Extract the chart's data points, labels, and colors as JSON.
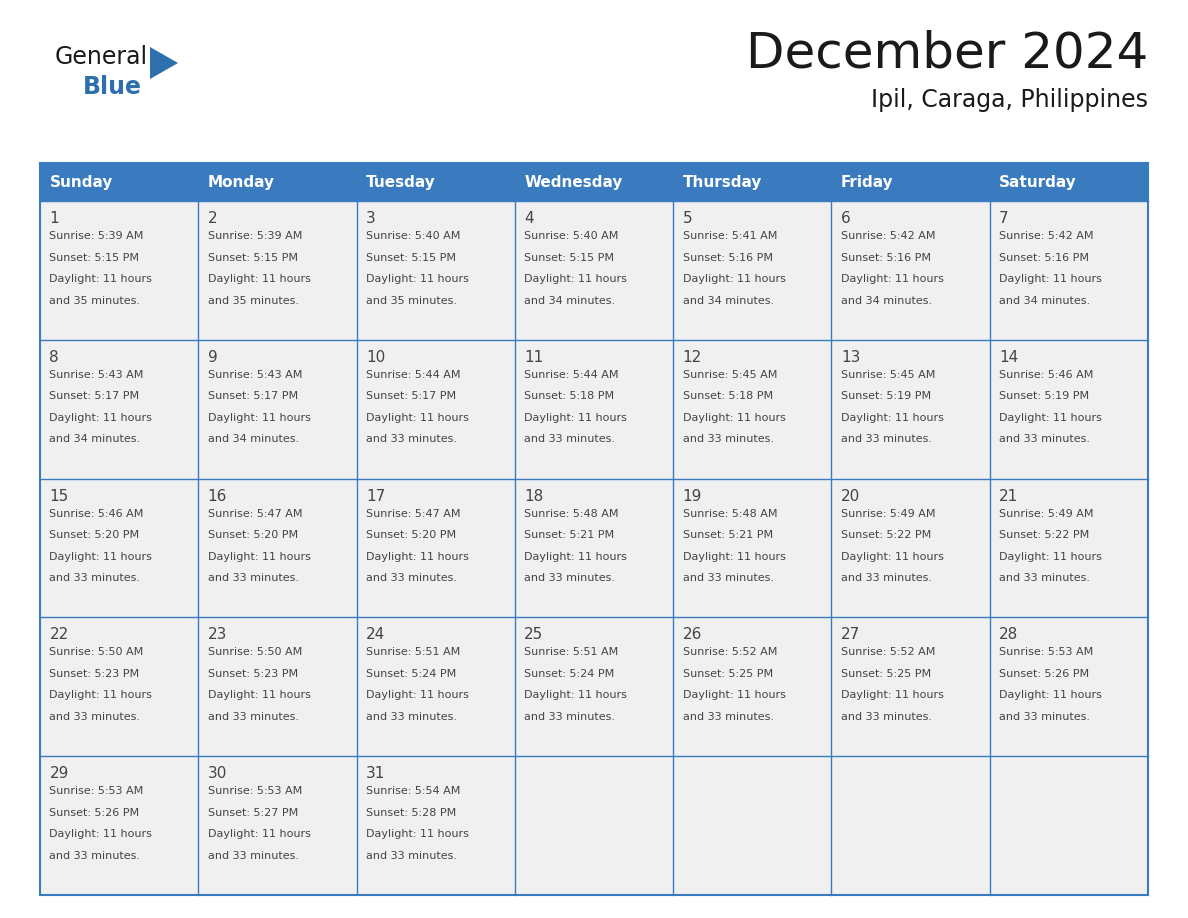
{
  "title": "December 2024",
  "subtitle": "Ipil, Caraga, Philippines",
  "header_color": "#3a7bbf",
  "header_text_color": "#ffffff",
  "cell_bg_color": "#f0f0f0",
  "border_color": "#3a7bbf",
  "day_names": [
    "Sunday",
    "Monday",
    "Tuesday",
    "Wednesday",
    "Thursday",
    "Friday",
    "Saturday"
  ],
  "days": [
    {
      "day": 1,
      "col": 0,
      "row": 0,
      "sunrise": "5:39 AM",
      "sunset": "5:15 PM",
      "daylight_suffix": "35 minutes."
    },
    {
      "day": 2,
      "col": 1,
      "row": 0,
      "sunrise": "5:39 AM",
      "sunset": "5:15 PM",
      "daylight_suffix": "35 minutes."
    },
    {
      "day": 3,
      "col": 2,
      "row": 0,
      "sunrise": "5:40 AM",
      "sunset": "5:15 PM",
      "daylight_suffix": "35 minutes."
    },
    {
      "day": 4,
      "col": 3,
      "row": 0,
      "sunrise": "5:40 AM",
      "sunset": "5:15 PM",
      "daylight_suffix": "34 minutes."
    },
    {
      "day": 5,
      "col": 4,
      "row": 0,
      "sunrise": "5:41 AM",
      "sunset": "5:16 PM",
      "daylight_suffix": "34 minutes."
    },
    {
      "day": 6,
      "col": 5,
      "row": 0,
      "sunrise": "5:42 AM",
      "sunset": "5:16 PM",
      "daylight_suffix": "34 minutes."
    },
    {
      "day": 7,
      "col": 6,
      "row": 0,
      "sunrise": "5:42 AM",
      "sunset": "5:16 PM",
      "daylight_suffix": "34 minutes."
    },
    {
      "day": 8,
      "col": 0,
      "row": 1,
      "sunrise": "5:43 AM",
      "sunset": "5:17 PM",
      "daylight_suffix": "34 minutes."
    },
    {
      "day": 9,
      "col": 1,
      "row": 1,
      "sunrise": "5:43 AM",
      "sunset": "5:17 PM",
      "daylight_suffix": "34 minutes."
    },
    {
      "day": 10,
      "col": 2,
      "row": 1,
      "sunrise": "5:44 AM",
      "sunset": "5:17 PM",
      "daylight_suffix": "33 minutes."
    },
    {
      "day": 11,
      "col": 3,
      "row": 1,
      "sunrise": "5:44 AM",
      "sunset": "5:18 PM",
      "daylight_suffix": "33 minutes."
    },
    {
      "day": 12,
      "col": 4,
      "row": 1,
      "sunrise": "5:45 AM",
      "sunset": "5:18 PM",
      "daylight_suffix": "33 minutes."
    },
    {
      "day": 13,
      "col": 5,
      "row": 1,
      "sunrise": "5:45 AM",
      "sunset": "5:19 PM",
      "daylight_suffix": "33 minutes."
    },
    {
      "day": 14,
      "col": 6,
      "row": 1,
      "sunrise": "5:46 AM",
      "sunset": "5:19 PM",
      "daylight_suffix": "33 minutes."
    },
    {
      "day": 15,
      "col": 0,
      "row": 2,
      "sunrise": "5:46 AM",
      "sunset": "5:20 PM",
      "daylight_suffix": "33 minutes."
    },
    {
      "day": 16,
      "col": 1,
      "row": 2,
      "sunrise": "5:47 AM",
      "sunset": "5:20 PM",
      "daylight_suffix": "33 minutes."
    },
    {
      "day": 17,
      "col": 2,
      "row": 2,
      "sunrise": "5:47 AM",
      "sunset": "5:20 PM",
      "daylight_suffix": "33 minutes."
    },
    {
      "day": 18,
      "col": 3,
      "row": 2,
      "sunrise": "5:48 AM",
      "sunset": "5:21 PM",
      "daylight_suffix": "33 minutes."
    },
    {
      "day": 19,
      "col": 4,
      "row": 2,
      "sunrise": "5:48 AM",
      "sunset": "5:21 PM",
      "daylight_suffix": "33 minutes."
    },
    {
      "day": 20,
      "col": 5,
      "row": 2,
      "sunrise": "5:49 AM",
      "sunset": "5:22 PM",
      "daylight_suffix": "33 minutes."
    },
    {
      "day": 21,
      "col": 6,
      "row": 2,
      "sunrise": "5:49 AM",
      "sunset": "5:22 PM",
      "daylight_suffix": "33 minutes."
    },
    {
      "day": 22,
      "col": 0,
      "row": 3,
      "sunrise": "5:50 AM",
      "sunset": "5:23 PM",
      "daylight_suffix": "33 minutes."
    },
    {
      "day": 23,
      "col": 1,
      "row": 3,
      "sunrise": "5:50 AM",
      "sunset": "5:23 PM",
      "daylight_suffix": "33 minutes."
    },
    {
      "day": 24,
      "col": 2,
      "row": 3,
      "sunrise": "5:51 AM",
      "sunset": "5:24 PM",
      "daylight_suffix": "33 minutes."
    },
    {
      "day": 25,
      "col": 3,
      "row": 3,
      "sunrise": "5:51 AM",
      "sunset": "5:24 PM",
      "daylight_suffix": "33 minutes."
    },
    {
      "day": 26,
      "col": 4,
      "row": 3,
      "sunrise": "5:52 AM",
      "sunset": "5:25 PM",
      "daylight_suffix": "33 minutes."
    },
    {
      "day": 27,
      "col": 5,
      "row": 3,
      "sunrise": "5:52 AM",
      "sunset": "5:25 PM",
      "daylight_suffix": "33 minutes."
    },
    {
      "day": 28,
      "col": 6,
      "row": 3,
      "sunrise": "5:53 AM",
      "sunset": "5:26 PM",
      "daylight_suffix": "33 minutes."
    },
    {
      "day": 29,
      "col": 0,
      "row": 4,
      "sunrise": "5:53 AM",
      "sunset": "5:26 PM",
      "daylight_suffix": "33 minutes."
    },
    {
      "day": 30,
      "col": 1,
      "row": 4,
      "sunrise": "5:53 AM",
      "sunset": "5:27 PM",
      "daylight_suffix": "33 minutes."
    },
    {
      "day": 31,
      "col": 2,
      "row": 4,
      "sunrise": "5:54 AM",
      "sunset": "5:28 PM",
      "daylight_suffix": "33 minutes."
    }
  ],
  "num_rows": 5,
  "logo_general_color": "#1a1a1a",
  "logo_blue_color": "#2e6fad"
}
